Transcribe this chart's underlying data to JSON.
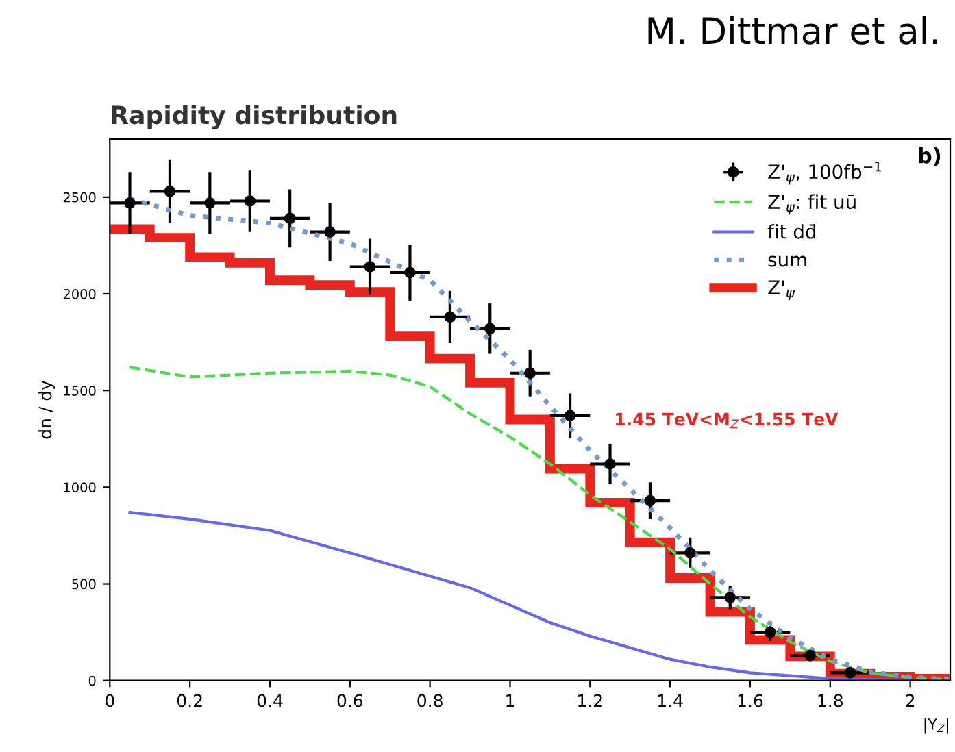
{
  "chart_data": {
    "type": "line",
    "title": "Rapidity distribution",
    "xlabel": "|Y$_{Z}$|",
    "ylabel": "dn / dy",
    "annotations": [
      "M. Dittmar et al.",
      "b)",
      "1.45 TeV<M$_{Z}$<1.55 TeV"
    ],
    "xlim": [
      0,
      2.1
    ],
    "ylim": [
      0,
      2800
    ],
    "xticks": [
      0,
      0.2,
      0.4,
      0.6,
      0.8,
      1,
      1.2,
      1.4,
      1.6,
      1.8,
      2
    ],
    "yticks": [
      0,
      500,
      1000,
      1500,
      2000,
      2500
    ],
    "grid": false,
    "legend": "top right",
    "series": [
      {
        "name": "Z'$_{ψ}$, 100fb$^{−1}$",
        "type": "scatter",
        "color": "#000000",
        "marker": "circle",
        "x": [
          0.05,
          0.15,
          0.25,
          0.35,
          0.45,
          0.55,
          0.65,
          0.75,
          0.85,
          0.95,
          1.05,
          1.15,
          1.25,
          1.35,
          1.45,
          1.55,
          1.65,
          1.75,
          1.85
        ],
        "values": [
          2470,
          2530,
          2470,
          2480,
          2390,
          2320,
          2140,
          2110,
          1880,
          1820,
          1590,
          1370,
          1120,
          930,
          660,
          430,
          250,
          130,
          40
        ],
        "errors": [
          160,
          165,
          160,
          160,
          150,
          150,
          145,
          145,
          135,
          130,
          120,
          115,
          105,
          95,
          80,
          60,
          45,
          30,
          20
        ],
        "xerrors": [
          0.05,
          0.05,
          0.05,
          0.05,
          0.05,
          0.05,
          0.05,
          0.05,
          0.05,
          0.05,
          0.05,
          0.05,
          0.05,
          0.05,
          0.05,
          0.05,
          0.05,
          0.05,
          0.05
        ]
      },
      {
        "name": "Z'$_{ψ}$: fit uū",
        "color": "#44dd44",
        "line_style": "dashed",
        "x": [
          0.05,
          0.2,
          0.4,
          0.6,
          0.7,
          0.8,
          0.9,
          1.0,
          1.1,
          1.2,
          1.3,
          1.4,
          1.5,
          1.6,
          1.7,
          1.8,
          1.9,
          2.0,
          2.1
        ],
        "values": [
          1620,
          1570,
          1590,
          1600,
          1580,
          1520,
          1380,
          1260,
          1120,
          960,
          820,
          680,
          500,
          330,
          200,
          100,
          40,
          15,
          5
        ]
      },
      {
        "name": "fit dd̄",
        "color": "#6666ee",
        "line_style": "solid",
        "x": [
          0.05,
          0.2,
          0.4,
          0.6,
          0.8,
          0.9,
          1.0,
          1.1,
          1.2,
          1.3,
          1.4,
          1.5,
          1.6,
          1.8,
          2.0
        ],
        "values": [
          870,
          835,
          776,
          660,
          540,
          480,
          390,
          300,
          230,
          170,
          110,
          70,
          40,
          10,
          2
        ]
      },
      {
        "name": "sum",
        "color": "#7799cc",
        "line_style": "dotted",
        "x": [
          0.05,
          0.2,
          0.4,
          0.6,
          0.8,
          0.9,
          1.0,
          1.1,
          1.2,
          1.3,
          1.4,
          1.5,
          1.6,
          1.7,
          1.8,
          1.9,
          2.0,
          2.1
        ],
        "values": [
          2490,
          2405,
          2366,
          2260,
          2070,
          1860,
          1660,
          1420,
          1190,
          990,
          790,
          570,
          370,
          220,
          110,
          45,
          17,
          5
        ]
      },
      {
        "name": "Z'$_{ψ}$",
        "type": "histogram",
        "color": "#e8251f",
        "bins": [
          0,
          0.1,
          0.2,
          0.3,
          0.4,
          0.5,
          0.6,
          0.7,
          0.8,
          0.9,
          1.0,
          1.1,
          1.2,
          1.3,
          1.4,
          1.5,
          1.6,
          1.7,
          1.8,
          1.9,
          2.0,
          2.1
        ],
        "values": [
          2335,
          2290,
          2190,
          2160,
          2070,
          2045,
          2010,
          1780,
          1665,
          1540,
          1350,
          1095,
          920,
          715,
          530,
          355,
          210,
          125,
          35,
          20,
          10
        ]
      }
    ]
  }
}
